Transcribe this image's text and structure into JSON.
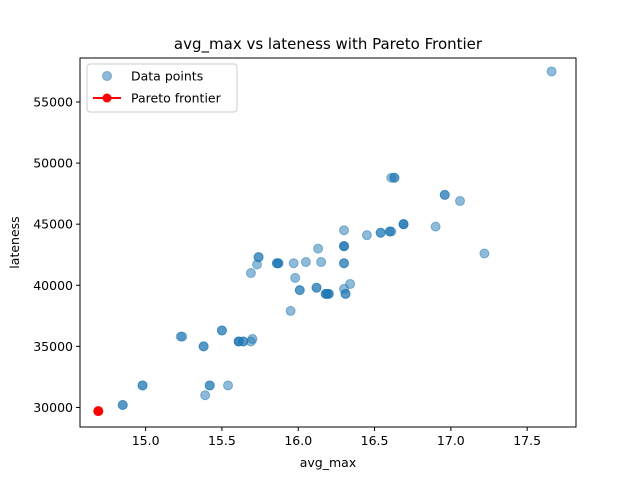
{
  "chart_data": {
    "type": "scatter",
    "title": "avg_max vs lateness with Pareto Frontier",
    "xlabel": "avg_max",
    "ylabel": "lateness",
    "xlim": [
      14.57,
      17.82
    ],
    "ylim": [
      28400,
      58600
    ],
    "xticks": [
      15.0,
      15.5,
      16.0,
      16.5,
      17.0,
      17.5
    ],
    "xtick_labels": [
      "15.0",
      "15.5",
      "16.0",
      "16.5",
      "17.0",
      "17.5"
    ],
    "yticks": [
      30000,
      35000,
      40000,
      45000,
      50000,
      55000
    ],
    "ytick_labels": [
      "30000",
      "35000",
      "40000",
      "45000",
      "50000",
      "55000"
    ],
    "grid": false,
    "legend": {
      "position": "top-left"
    },
    "series": [
      {
        "name": "Data points",
        "kind": "scatter",
        "color": "#1f77b4",
        "alpha": 0.5,
        "points": [
          [
            17.66,
            57500
          ],
          [
            14.85,
            30200
          ],
          [
            14.85,
            30200
          ],
          [
            14.98,
            31800
          ],
          [
            14.98,
            31800
          ],
          [
            15.23,
            35800
          ],
          [
            15.24,
            35800
          ],
          [
            15.38,
            35000
          ],
          [
            15.38,
            35000
          ],
          [
            15.39,
            31000
          ],
          [
            15.42,
            31800
          ],
          [
            15.42,
            31800
          ],
          [
            15.5,
            36300
          ],
          [
            15.5,
            36300
          ],
          [
            15.54,
            31800
          ],
          [
            15.61,
            35400
          ],
          [
            15.61,
            35400
          ],
          [
            15.61,
            35400
          ],
          [
            15.64,
            35400
          ],
          [
            15.64,
            35400
          ],
          [
            15.69,
            35400
          ],
          [
            15.7,
            35600
          ],
          [
            15.69,
            41000
          ],
          [
            15.73,
            41700
          ],
          [
            15.74,
            42300
          ],
          [
            15.74,
            42300
          ],
          [
            15.86,
            41800
          ],
          [
            15.86,
            41800
          ],
          [
            15.87,
            41800
          ],
          [
            15.87,
            41800
          ],
          [
            15.95,
            37900
          ],
          [
            15.97,
            41800
          ],
          [
            15.98,
            40600
          ],
          [
            16.01,
            39600
          ],
          [
            16.01,
            39600
          ],
          [
            16.05,
            41900
          ],
          [
            16.12,
            39800
          ],
          [
            16.12,
            39800
          ],
          [
            16.13,
            43000
          ],
          [
            16.15,
            41900
          ],
          [
            16.18,
            39300
          ],
          [
            16.18,
            39300
          ],
          [
            16.19,
            39300
          ],
          [
            16.19,
            39300
          ],
          [
            16.2,
            39300
          ],
          [
            16.2,
            39300
          ],
          [
            16.3,
            44500
          ],
          [
            16.3,
            43200
          ],
          [
            16.3,
            43200
          ],
          [
            16.3,
            43200
          ],
          [
            16.3,
            41800
          ],
          [
            16.3,
            41800
          ],
          [
            16.3,
            39700
          ],
          [
            16.31,
            39300
          ],
          [
            16.31,
            39300
          ],
          [
            16.34,
            40100
          ],
          [
            16.45,
            44100
          ],
          [
            16.54,
            44300
          ],
          [
            16.54,
            44300
          ],
          [
            16.6,
            44400
          ],
          [
            16.6,
            44400
          ],
          [
            16.61,
            44400
          ],
          [
            16.61,
            48800
          ],
          [
            16.63,
            48800
          ],
          [
            16.63,
            48800
          ],
          [
            16.69,
            45000
          ],
          [
            16.69,
            45000
          ],
          [
            16.69,
            45000
          ],
          [
            16.9,
            44800
          ],
          [
            16.96,
            47400
          ],
          [
            16.96,
            47400
          ],
          [
            17.06,
            46900
          ],
          [
            17.22,
            42600
          ]
        ]
      },
      {
        "name": "Pareto frontier",
        "kind": "line",
        "color": "#ff0000",
        "points": [
          [
            14.69,
            29700
          ]
        ]
      }
    ]
  }
}
